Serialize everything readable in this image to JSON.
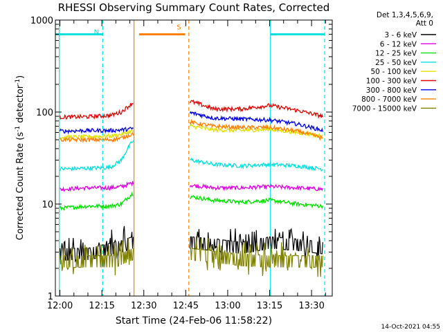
{
  "chart_data": {
    "type": "line",
    "title": "RHESSI Observing Summary Count Rates, Corrected",
    "xlabel": "Start Time (24-Feb-06 11:58:22)",
    "ylabel": "Corrected Count Rate (s⁻¹ detector⁻¹)",
    "ylabel_main": "Corrected Count Rate (s",
    "ylabel_mid": " detector",
    "ylabel_end": ")",
    "ylabel_sup": "-1",
    "y_scale": "log",
    "ylim": [
      1,
      1000
    ],
    "xlim_minutes": [
      -1.63,
      97.4
    ],
    "x_ticks": [
      {
        "label": "12:00",
        "minute": 0
      },
      {
        "label": "12:15",
        "minute": 15
      },
      {
        "label": "12:30",
        "minute": 30
      },
      {
        "label": "12:45",
        "minute": 45
      },
      {
        "label": "13:00",
        "minute": 60
      },
      {
        "label": "13:15",
        "minute": 75
      },
      {
        "label": "13:30",
        "minute": 90
      }
    ],
    "y_ticks": [
      {
        "label": "1",
        "value": 1
      },
      {
        "label": "10",
        "value": 10
      },
      {
        "label": "100",
        "value": 100
      },
      {
        "label": "1000",
        "value": 1000
      }
    ],
    "legend_header": [
      "Det 1,3,4,5,6,9,",
      "Att 0"
    ],
    "legend_position": "right",
    "timestamp": "14-Oct-2021 04:55",
    "gap_minutes": [
      26.4,
      46.5
    ],
    "series": [
      {
        "name": "3 - 6 keV",
        "color": "#000000",
        "x": [
          0,
          10,
          20,
          26,
          47,
          55,
          65,
          75,
          85,
          94
        ],
        "y": [
          3,
          3,
          3.5,
          4,
          4,
          3.8,
          3.5,
          4,
          3.8,
          3.5
        ]
      },
      {
        "name": "6 - 12 keV",
        "color": "#e000e0",
        "x": [
          0,
          10,
          18,
          22,
          26,
          47,
          55,
          65,
          75,
          85,
          94
        ],
        "y": [
          14.5,
          15,
          15,
          15.5,
          17,
          16,
          15,
          15,
          15.5,
          15,
          14.5
        ]
      },
      {
        "name": "12 - 25 keV",
        "color": "#00e000",
        "x": [
          0,
          10,
          18,
          22,
          26,
          47,
          55,
          65,
          75,
          85,
          94
        ],
        "y": [
          9,
          9.5,
          9.5,
          10,
          13,
          12,
          11,
          10.5,
          11,
          10,
          9.5
        ]
      },
      {
        "name": "25 - 50 keV",
        "color": "#00e0e0",
        "x": [
          0,
          10,
          18,
          22,
          26,
          47,
          55,
          65,
          75,
          85,
          94
        ],
        "y": [
          24,
          24.5,
          25,
          30,
          48,
          30,
          27,
          26,
          27,
          26,
          24
        ]
      },
      {
        "name": "50 - 100 keV",
        "color": "#e0e000",
        "x": [
          0,
          10,
          18,
          22,
          26,
          47,
          55,
          65,
          75,
          85,
          94
        ],
        "y": [
          53,
          54,
          55,
          57,
          62,
          70,
          64,
          63,
          65,
          60,
          55
        ]
      },
      {
        "name": "100 - 300 keV",
        "color": "#e00000",
        "x": [
          0,
          10,
          18,
          22,
          26,
          47,
          55,
          65,
          75,
          85,
          94
        ],
        "y": [
          88,
          89,
          92,
          100,
          125,
          130,
          108,
          108,
          118,
          104,
          90
        ]
      },
      {
        "name": "300 - 800 keV",
        "color": "#0000e0",
        "x": [
          0,
          10,
          18,
          22,
          26,
          47,
          55,
          65,
          75,
          85,
          94
        ],
        "y": [
          62,
          63,
          63,
          64,
          66,
          98,
          86,
          84,
          82,
          74,
          63
        ]
      },
      {
        "name": "800 - 7000 keV",
        "color": "#ff8000",
        "x": [
          0,
          10,
          18,
          22,
          26,
          47,
          55,
          65,
          75,
          85,
          94
        ],
        "y": [
          50,
          50,
          50,
          52,
          58,
          77,
          70,
          68,
          68,
          62,
          52
        ]
      },
      {
        "name": "7000 - 15000 keV",
        "color": "#808000",
        "x": [
          0,
          10,
          20,
          26,
          47,
          55,
          65,
          75,
          85,
          94
        ],
        "y": [
          2.5,
          2.5,
          2.5,
          3,
          3,
          2.8,
          2.6,
          2.5,
          2.5,
          2.5
        ]
      }
    ],
    "flag_bars": [
      {
        "label": "N",
        "color": "#00e0e0",
        "start": -1.63,
        "end": 15.3
      },
      {
        "label": "S",
        "color": "#ff8000",
        "start": 28.3,
        "end": 44.8
      },
      {
        "label": "",
        "color": "#00e0e0",
        "start": 75.3,
        "end": 94.7
      }
    ],
    "vertical_markers": [
      {
        "minute": -0.2,
        "color": "#00e0e0",
        "style": "solid"
      },
      {
        "minute": 15.3,
        "color": "#00e0e0",
        "style": "dashed"
      },
      {
        "minute": 26.5,
        "color": "#ff8000",
        "style": "solid"
      },
      {
        "minute": 46.1,
        "color": "#ff8000",
        "style": "dashed"
      },
      {
        "minute": 75.3,
        "color": "#00e0e0",
        "style": "solid"
      },
      {
        "minute": 94.7,
        "color": "#00e0e0",
        "style": "dashed"
      }
    ]
  }
}
